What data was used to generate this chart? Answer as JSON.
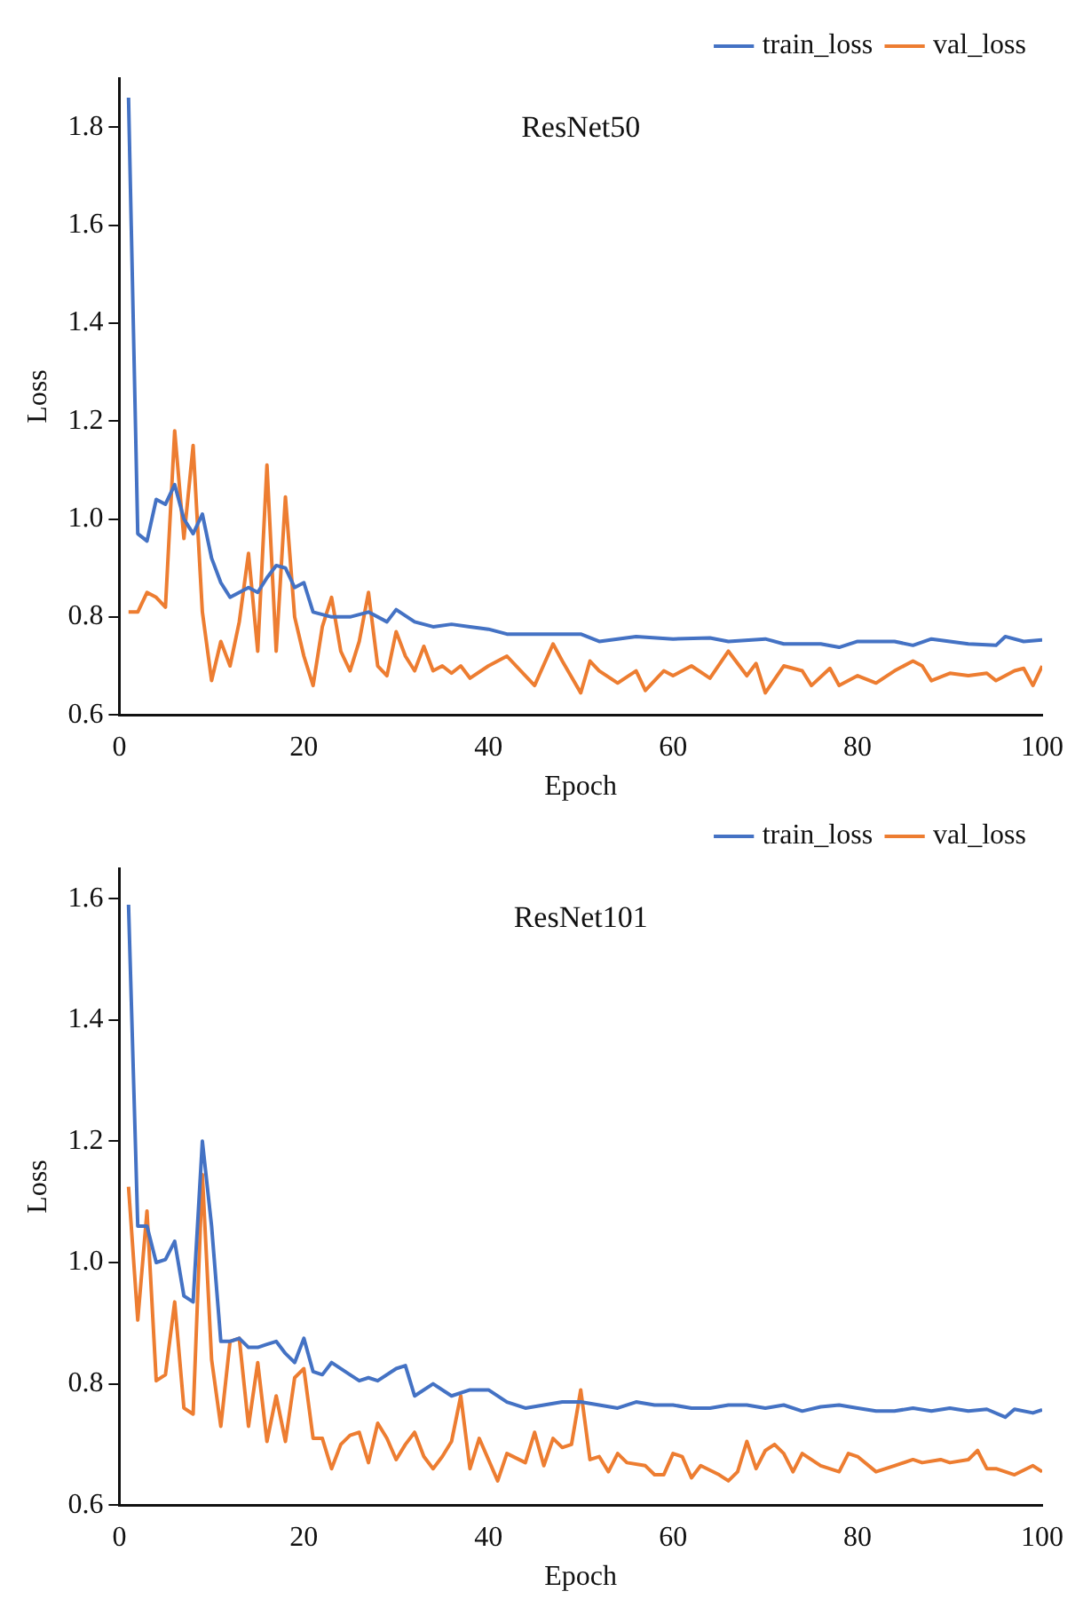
{
  "chart_data": [
    {
      "type": "line",
      "title": "ResNet50",
      "xlabel": "Epoch",
      "ylabel": "Loss",
      "xlim": [
        0,
        100
      ],
      "xticks": [
        0,
        20,
        40,
        60,
        80,
        100
      ],
      "ylim": [
        0.6,
        1.9
      ],
      "yticks": [
        0.6,
        0.8,
        {
          "value": 1,
          "label": "1.0"
        },
        1.2,
        1.4,
        1.6,
        1.8
      ],
      "legend": "top right",
      "grid": false,
      "marker": "none",
      "line_style": "solid",
      "series": [
        {
          "name": "train_loss",
          "color": "#4472c4",
          "x": [
            1,
            2,
            3,
            4,
            5,
            6,
            7,
            8,
            9,
            10,
            11,
            12,
            13,
            14,
            15,
            16,
            17,
            18,
            19,
            20,
            21,
            22,
            23,
            25,
            27,
            29,
            30,
            32,
            34,
            36,
            38,
            40,
            42,
            46,
            50,
            52,
            56,
            60,
            64,
            66,
            70,
            72,
            76,
            78,
            80,
            84,
            86,
            88,
            92,
            95,
            96,
            98,
            100
          ],
          "values": [
            1.86,
            0.97,
            0.955,
            1.04,
            1.03,
            1.07,
            1.0,
            0.97,
            1.01,
            0.92,
            0.87,
            0.84,
            0.85,
            0.86,
            0.85,
            0.88,
            0.905,
            0.9,
            0.86,
            0.87,
            0.81,
            0.805,
            0.8,
            0.8,
            0.81,
            0.79,
            0.815,
            0.79,
            0.78,
            0.785,
            0.78,
            0.775,
            0.765,
            0.765,
            0.765,
            0.75,
            0.76,
            0.755,
            0.757,
            0.75,
            0.755,
            0.745,
            0.745,
            0.738,
            0.75,
            0.75,
            0.742,
            0.755,
            0.745,
            0.742,
            0.76,
            0.75,
            0.753
          ]
        },
        {
          "name": "val_loss",
          "color": "#ed7d31",
          "x": [
            1,
            2,
            3,
            4,
            5,
            6,
            7,
            8,
            9,
            10,
            11,
            12,
            13,
            14,
            15,
            16,
            17,
            18,
            19,
            20,
            21,
            22,
            23,
            24,
            25,
            26,
            27,
            28,
            29,
            30,
            31,
            32,
            33,
            34,
            35,
            36,
            37,
            38,
            40,
            42,
            44,
            45,
            47,
            48,
            50,
            51,
            52,
            54,
            56,
            57,
            59,
            60,
            62,
            64,
            66,
            68,
            69,
            70,
            72,
            74,
            75,
            77,
            78,
            80,
            82,
            84,
            86,
            87,
            88,
            90,
            92,
            94,
            95,
            97,
            98,
            99,
            100
          ],
          "values": [
            0.81,
            0.81,
            0.85,
            0.84,
            0.82,
            1.18,
            0.96,
            1.15,
            0.81,
            0.67,
            0.75,
            0.7,
            0.79,
            0.93,
            0.73,
            1.11,
            0.73,
            1.045,
            0.8,
            0.72,
            0.66,
            0.78,
            0.84,
            0.73,
            0.69,
            0.75,
            0.85,
            0.7,
            0.68,
            0.77,
            0.72,
            0.69,
            0.74,
            0.69,
            0.7,
            0.685,
            0.7,
            0.675,
            0.7,
            0.72,
            0.68,
            0.66,
            0.745,
            0.71,
            0.645,
            0.71,
            0.69,
            0.665,
            0.69,
            0.65,
            0.69,
            0.68,
            0.7,
            0.675,
            0.73,
            0.68,
            0.705,
            0.645,
            0.7,
            0.69,
            0.66,
            0.695,
            0.66,
            0.68,
            0.665,
            0.69,
            0.71,
            0.7,
            0.67,
            0.685,
            0.68,
            0.685,
            0.67,
            0.69,
            0.695,
            0.66,
            0.7
          ]
        }
      ]
    },
    {
      "type": "line",
      "title": "ResNet101",
      "xlabel": "Epoch",
      "ylabel": "Loss",
      "xlim": [
        0,
        100
      ],
      "xticks": [
        0,
        20,
        40,
        60,
        80,
        100
      ],
      "ylim": [
        0.6,
        1.65
      ],
      "yticks": [
        0.6,
        0.8,
        {
          "value": 1,
          "label": "1.0"
        },
        1.2,
        1.4,
        1.6
      ],
      "legend": "top right",
      "grid": false,
      "marker": "none",
      "line_style": "solid",
      "series": [
        {
          "name": "train_loss",
          "color": "#4472c4",
          "x": [
            1,
            2,
            3,
            4,
            5,
            6,
            7,
            8,
            9,
            10,
            11,
            12,
            13,
            14,
            15,
            16,
            17,
            18,
            19,
            20,
            21,
            22,
            23,
            25,
            26,
            27,
            28,
            30,
            31,
            32,
            34,
            36,
            38,
            40,
            42,
            44,
            46,
            48,
            50,
            52,
            54,
            56,
            58,
            60,
            62,
            64,
            66,
            68,
            70,
            72,
            74,
            76,
            78,
            80,
            82,
            84,
            86,
            88,
            90,
            92,
            94,
            96,
            97,
            99,
            100
          ],
          "values": [
            1.59,
            1.06,
            1.06,
            1.0,
            1.005,
            1.035,
            0.945,
            0.935,
            1.2,
            1.06,
            0.87,
            0.87,
            0.875,
            0.86,
            0.86,
            0.865,
            0.87,
            0.85,
            0.835,
            0.875,
            0.82,
            0.815,
            0.835,
            0.815,
            0.805,
            0.81,
            0.805,
            0.825,
            0.83,
            0.78,
            0.8,
            0.78,
            0.79,
            0.79,
            0.77,
            0.76,
            0.765,
            0.77,
            0.77,
            0.765,
            0.76,
            0.77,
            0.765,
            0.765,
            0.76,
            0.76,
            0.765,
            0.765,
            0.76,
            0.765,
            0.755,
            0.762,
            0.765,
            0.76,
            0.755,
            0.755,
            0.76,
            0.755,
            0.76,
            0.755,
            0.758,
            0.745,
            0.758,
            0.752,
            0.757
          ]
        },
        {
          "name": "val_loss",
          "color": "#ed7d31",
          "x": [
            1,
            2,
            3,
            4,
            5,
            6,
            7,
            8,
            9,
            10,
            11,
            12,
            13,
            14,
            15,
            16,
            17,
            18,
            19,
            20,
            21,
            22,
            23,
            24,
            25,
            26,
            27,
            28,
            29,
            30,
            31,
            32,
            33,
            34,
            35,
            36,
            37,
            38,
            39,
            41,
            42,
            44,
            45,
            46,
            47,
            48,
            49,
            50,
            51,
            52,
            53,
            54,
            55,
            57,
            58,
            59,
            60,
            61,
            62,
            63,
            65,
            66,
            67,
            68,
            69,
            70,
            71,
            72,
            73,
            74,
            76,
            78,
            79,
            80,
            82,
            84,
            86,
            87,
            89,
            90,
            92,
            93,
            94,
            95,
            97,
            99,
            100
          ],
          "values": [
            1.125,
            0.905,
            1.085,
            0.805,
            0.815,
            0.935,
            0.76,
            0.75,
            1.145,
            0.84,
            0.73,
            0.87,
            0.875,
            0.73,
            0.835,
            0.705,
            0.78,
            0.705,
            0.81,
            0.825,
            0.71,
            0.71,
            0.66,
            0.7,
            0.715,
            0.72,
            0.67,
            0.735,
            0.71,
            0.675,
            0.7,
            0.72,
            0.68,
            0.66,
            0.68,
            0.705,
            0.78,
            0.66,
            0.71,
            0.64,
            0.685,
            0.67,
            0.72,
            0.665,
            0.71,
            0.695,
            0.7,
            0.79,
            0.675,
            0.68,
            0.655,
            0.685,
            0.67,
            0.665,
            0.65,
            0.65,
            0.685,
            0.68,
            0.645,
            0.665,
            0.65,
            0.64,
            0.655,
            0.705,
            0.66,
            0.69,
            0.7,
            0.685,
            0.655,
            0.685,
            0.665,
            0.655,
            0.685,
            0.68,
            0.655,
            0.665,
            0.675,
            0.67,
            0.675,
            0.67,
            0.675,
            0.69,
            0.66,
            0.66,
            0.65,
            0.665,
            0.655
          ]
        }
      ]
    }
  ]
}
